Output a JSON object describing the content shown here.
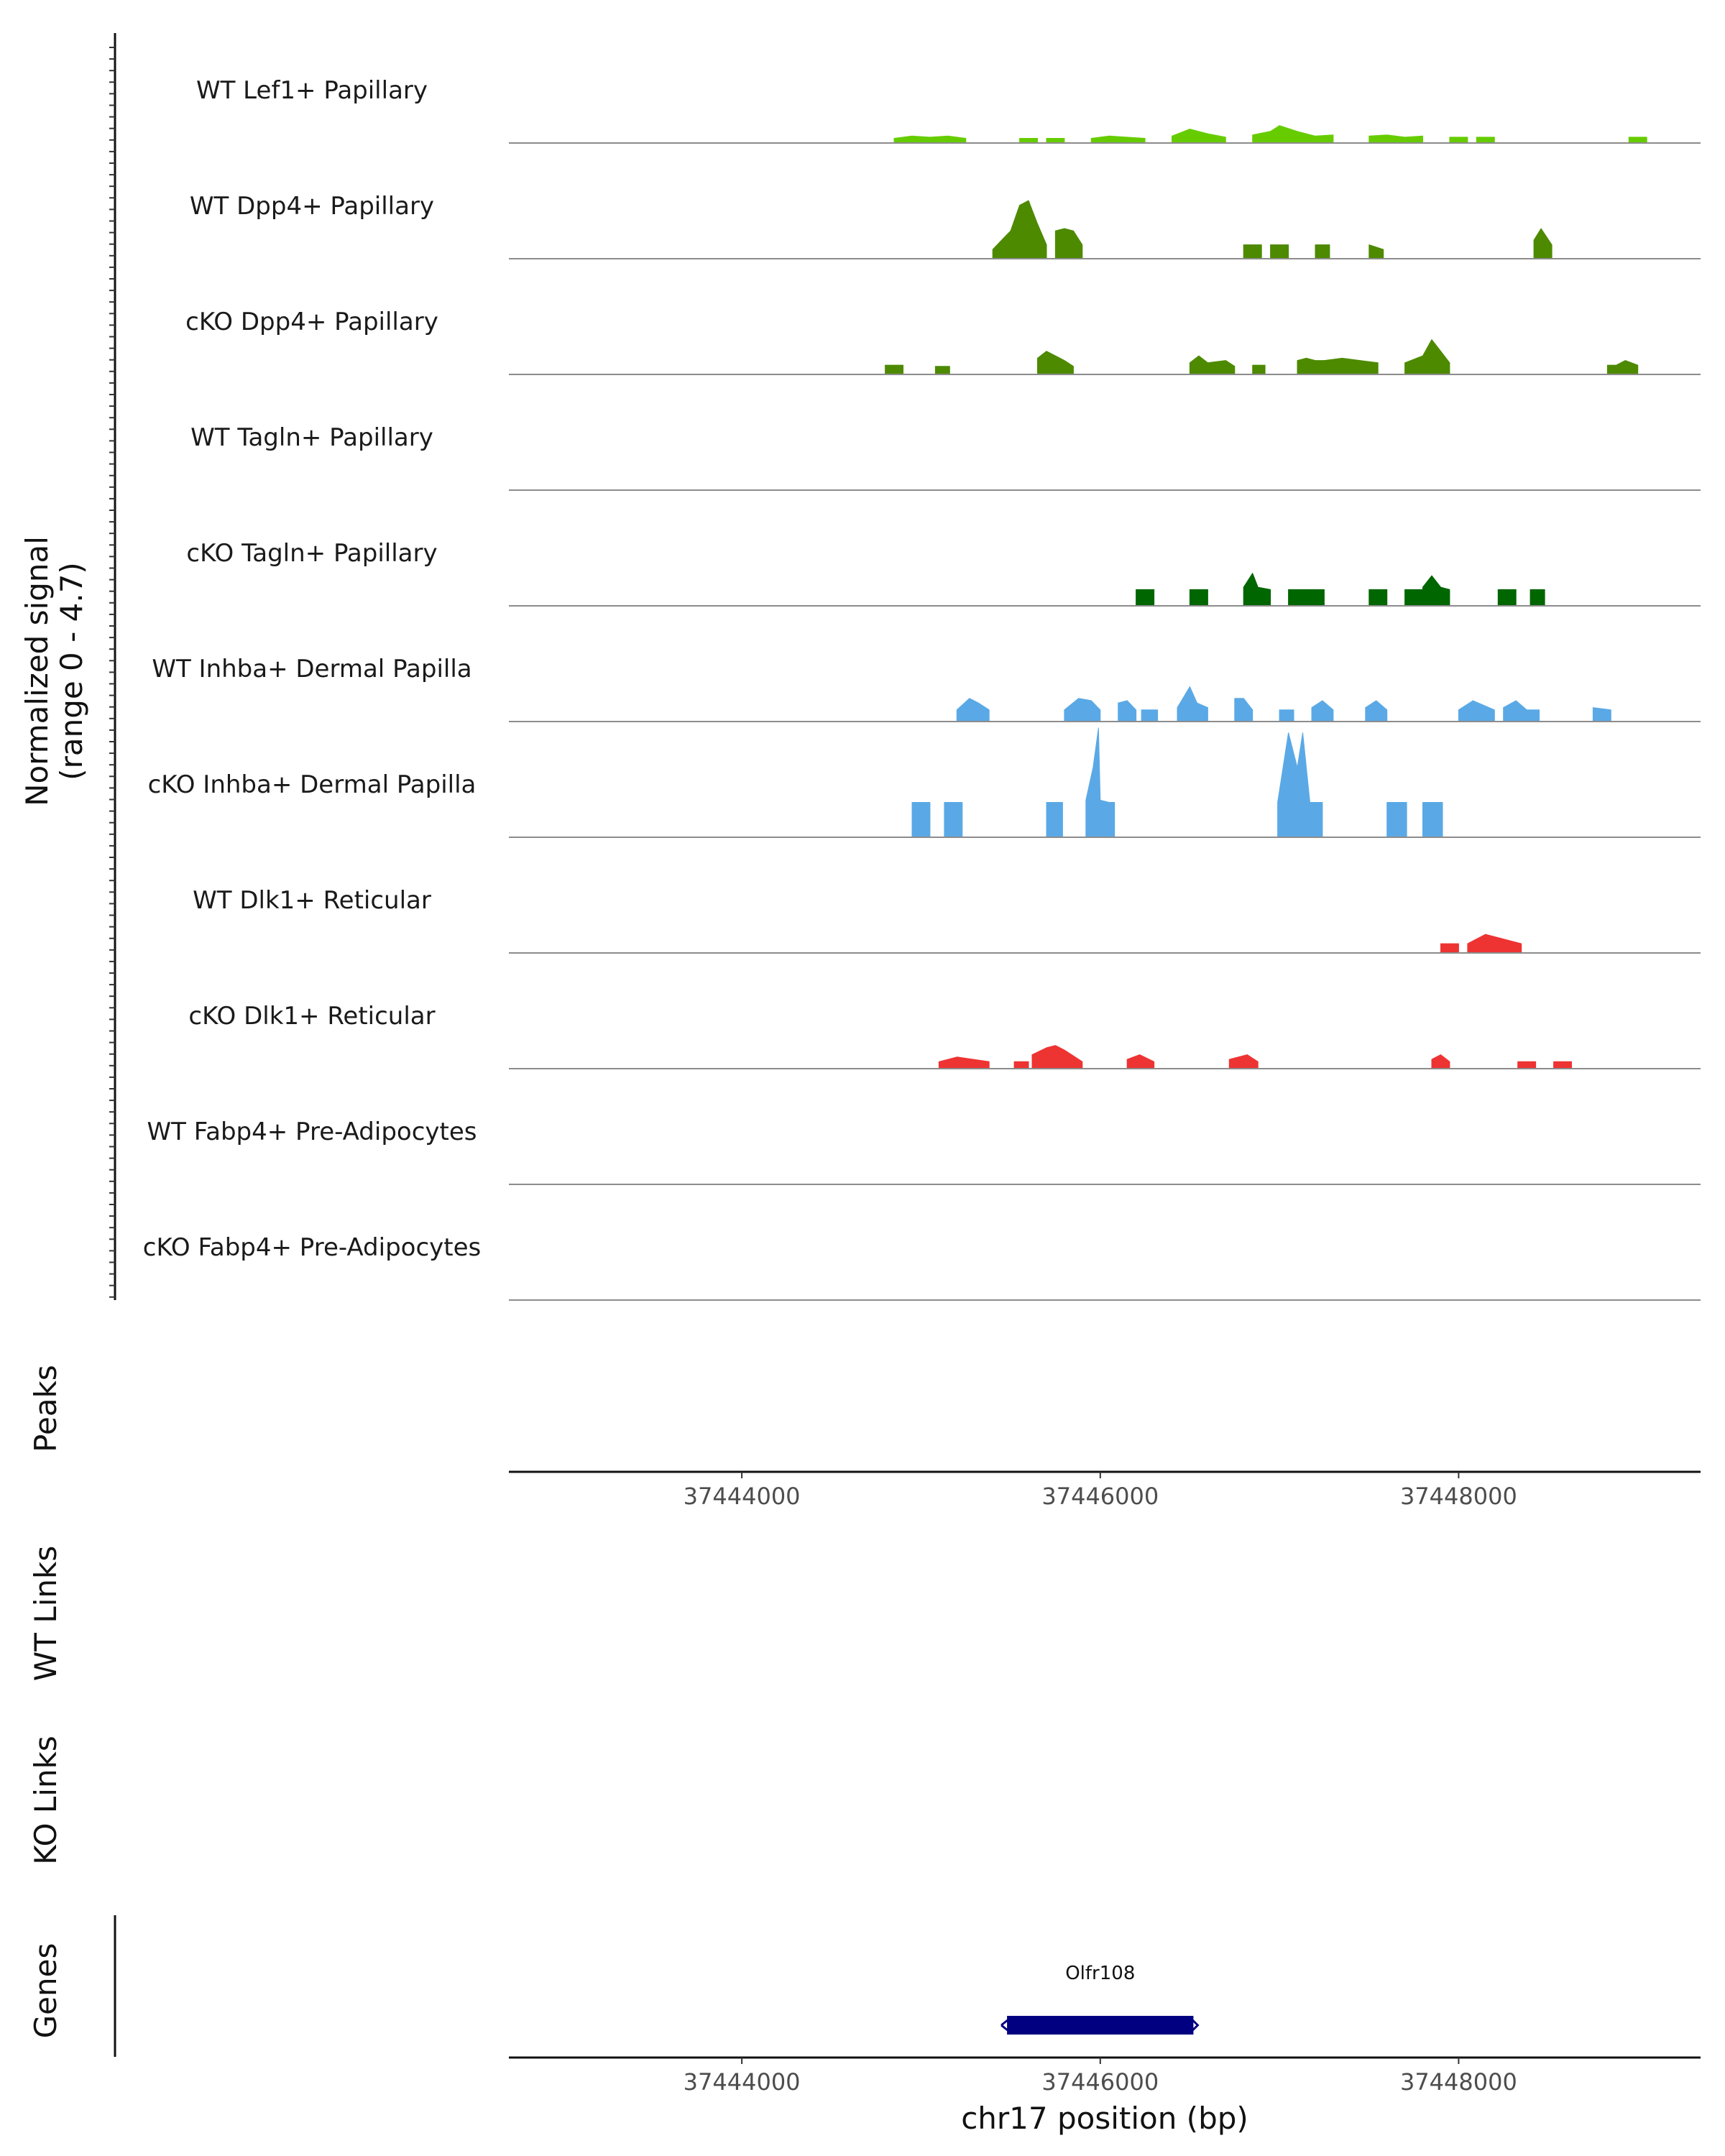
{
  "chart_data": {
    "type": "area",
    "chromosome": "chr17",
    "xlim": [
      37442700,
      37449350
    ],
    "signal_ylim": [
      0,
      4.7
    ],
    "ylabel_signal": "Normalized signal",
    "ylabel_signal_range": "(range 0 - 4.7)",
    "ylabel_peaks": "Peaks",
    "ylabel_wt_links": "WT Links",
    "ylabel_ko_links": "KO Links",
    "ylabel_genes": "Genes",
    "xlabel": "chr17 position (bp)",
    "xticks": [
      37444000,
      37446000,
      37448000
    ],
    "xtick_labels": [
      "37444000",
      "37446000",
      "37448000"
    ],
    "tracks": [
      {
        "name": "WT Lef1+ Papillary",
        "color": "#66cc00",
        "regions": [
          {
            "x": [
              37444850,
              37444950,
              37445050,
              37445150,
              37445250
            ],
            "y": [
              0.2,
              0.3,
              0.25,
              0.3,
              0.2
            ]
          },
          {
            "x": [
              37445550,
              37445650
            ],
            "y": [
              0.2,
              0.2
            ]
          },
          {
            "x": [
              37445700,
              37445800
            ],
            "y": [
              0.2,
              0.2
            ]
          },
          {
            "x": [
              37445950,
              37446050,
              37446150,
              37446250
            ],
            "y": [
              0.2,
              0.3,
              0.25,
              0.2
            ]
          },
          {
            "x": [
              37446400,
              37446500,
              37446600,
              37446700
            ],
            "y": [
              0.3,
              0.6,
              0.4,
              0.25
            ]
          },
          {
            "x": [
              37446850,
              37446950,
              37447000,
              37447100,
              37447200,
              37447300
            ],
            "y": [
              0.35,
              0.5,
              0.75,
              0.5,
              0.3,
              0.35
            ]
          },
          {
            "x": [
              37447500,
              37447600,
              37447700,
              37447800
            ],
            "y": [
              0.3,
              0.35,
              0.25,
              0.3
            ]
          },
          {
            "x": [
              37447950,
              37448050
            ],
            "y": [
              0.25,
              0.25
            ]
          },
          {
            "x": [
              37448100,
              37448200
            ],
            "y": [
              0.25,
              0.25
            ]
          },
          {
            "x": [
              37448950,
              37449050
            ],
            "y": [
              0.25,
              0.25
            ]
          }
        ]
      },
      {
        "name": "WT Dpp4+ Papillary",
        "color": "#4d8a00",
        "regions": [
          {
            "x": [
              37445400,
              37445450,
              37445500,
              37445550,
              37445600,
              37445650,
              37445700
            ],
            "y": [
              0.4,
              0.8,
              1.2,
              2.3,
              2.5,
              1.5,
              0.6
            ]
          },
          {
            "x": [
              37445750,
              37445800,
              37445850,
              37445900
            ],
            "y": [
              1.2,
              1.3,
              1.2,
              0.6
            ]
          },
          {
            "x": [
              37446800,
              37446900
            ],
            "y": [
              0.6,
              0.6
            ]
          },
          {
            "x": [
              37446950,
              37447050
            ],
            "y": [
              0.6,
              0.6
            ]
          },
          {
            "x": [
              37447200,
              37447280
            ],
            "y": [
              0.6,
              0.6
            ]
          },
          {
            "x": [
              37447500,
              37447580
            ],
            "y": [
              0.6,
              0.4
            ]
          },
          {
            "x": [
              37448420,
              37448460,
              37448520
            ],
            "y": [
              0.8,
              1.3,
              0.6
            ]
          }
        ]
      },
      {
        "name": "cKO Dpp4+ Papillary",
        "color": "#4d8a00",
        "regions": [
          {
            "x": [
              37444800,
              37444900
            ],
            "y": [
              0.4,
              0.4
            ]
          },
          {
            "x": [
              37445080,
              37445160
            ],
            "y": [
              0.35,
              0.35
            ]
          },
          {
            "x": [
              37445650,
              37445700,
              37445750,
              37445800,
              37445850
            ],
            "y": [
              0.7,
              1.0,
              0.8,
              0.6,
              0.35
            ]
          },
          {
            "x": [
              37446500,
              37446550,
              37446600,
              37446700,
              37446750
            ],
            "y": [
              0.5,
              0.8,
              0.5,
              0.6,
              0.35
            ]
          },
          {
            "x": [
              37446850,
              37446920
            ],
            "y": [
              0.4,
              0.4
            ]
          },
          {
            "x": [
              37447100,
              37447150,
              37447200,
              37447250
            ],
            "y": [
              0.6,
              0.7,
              0.6,
              0.6
            ]
          },
          {
            "x": [
              37447250,
              37447350,
              37447450,
              37447550
            ],
            "y": [
              0.6,
              0.7,
              0.6,
              0.5
            ]
          },
          {
            "x": [
              37447700,
              37447800,
              37447850,
              37447900,
              37447950
            ],
            "y": [
              0.5,
              0.8,
              1.5,
              1.0,
              0.5
            ]
          },
          {
            "x": [
              37448830,
              37448880,
              37448930,
              37449000
            ],
            "y": [
              0.4,
              0.4,
              0.6,
              0.4
            ]
          }
        ]
      },
      {
        "name": "WT Tagln+ Papillary",
        "color": "#006600",
        "regions": []
      },
      {
        "name": "cKO Tagln+ Papillary",
        "color": "#006600",
        "regions": [
          {
            "x": [
              37446200,
              37446300
            ],
            "y": [
              0.7,
              0.7
            ]
          },
          {
            "x": [
              37446500,
              37446600
            ],
            "y": [
              0.7,
              0.7
            ]
          },
          {
            "x": [
              37446800,
              37446850,
              37446880,
              37446950
            ],
            "y": [
              0.8,
              1.4,
              0.8,
              0.7
            ]
          },
          {
            "x": [
              37447050,
              37447150
            ],
            "y": [
              0.7,
              0.7
            ]
          },
          {
            "x": [
              37447150,
              37447250
            ],
            "y": [
              0.7,
              0.7
            ]
          },
          {
            "x": [
              37447500,
              37447600
            ],
            "y": [
              0.7,
              0.7
            ]
          },
          {
            "x": [
              37447700,
              37447800
            ],
            "y": [
              0.7,
              0.7
            ]
          },
          {
            "x": [
              37447800,
              37447850,
              37447900,
              37447950
            ],
            "y": [
              0.8,
              1.3,
              0.8,
              0.7
            ]
          },
          {
            "x": [
              37448220,
              37448320
            ],
            "y": [
              0.7,
              0.7
            ]
          },
          {
            "x": [
              37448400,
              37448480
            ],
            "y": [
              0.7,
              0.7
            ]
          }
        ]
      },
      {
        "name": "WT Inhba+ Dermal Papilla",
        "color": "#5aa9e6",
        "regions": [
          {
            "x": [
              37445200,
              37445270,
              37445320,
              37445380
            ],
            "y": [
              0.5,
              1.0,
              0.8,
              0.5
            ]
          },
          {
            "x": [
              37445800,
              37445880,
              37445950,
              37446000
            ],
            "y": [
              0.5,
              1.0,
              0.9,
              0.5
            ]
          },
          {
            "x": [
              37446100,
              37446150,
              37446200
            ],
            "y": [
              0.8,
              0.9,
              0.5
            ]
          },
          {
            "x": [
              37446230,
              37446320
            ],
            "y": [
              0.5,
              0.5
            ]
          },
          {
            "x": [
              37446430,
              37446500,
              37446540,
              37446600
            ],
            "y": [
              0.6,
              1.5,
              0.8,
              0.6
            ]
          },
          {
            "x": [
              37446750,
              37446800,
              37446850
            ],
            "y": [
              1.0,
              1.0,
              0.5
            ]
          },
          {
            "x": [
              37447000,
              37447080
            ],
            "y": [
              0.5,
              0.5
            ]
          },
          {
            "x": [
              37447180,
              37447240,
              37447300
            ],
            "y": [
              0.6,
              0.9,
              0.5
            ]
          },
          {
            "x": [
              37447480,
              37447540,
              37447600
            ],
            "y": [
              0.6,
              0.9,
              0.5
            ]
          },
          {
            "x": [
              37448000,
              37448080,
              37448200
            ],
            "y": [
              0.5,
              0.9,
              0.5
            ]
          },
          {
            "x": [
              37448250,
              37448320,
              37448380,
              37448450
            ],
            "y": [
              0.6,
              0.9,
              0.5,
              0.5
            ]
          },
          {
            "x": [
              37448750,
              37448850
            ],
            "y": [
              0.6,
              0.5
            ]
          }
        ]
      },
      {
        "name": "cKO Inhba+ Dermal Papilla",
        "color": "#5aa9e6",
        "regions": [
          {
            "x": [
              37444950,
              37445050
            ],
            "y": [
              1.5,
              1.5
            ]
          },
          {
            "x": [
              37445130,
              37445230
            ],
            "y": [
              1.5,
              1.5
            ]
          },
          {
            "x": [
              37445700,
              37445790
            ],
            "y": [
              1.5,
              1.5
            ]
          },
          {
            "x": [
              37445920,
              37445960,
              37445990,
              37446000,
              37446050,
              37446080
            ],
            "y": [
              1.6,
              3.0,
              4.7,
              1.6,
              1.5,
              1.5
            ]
          },
          {
            "x": [
              37446990,
              37447050,
              37447100,
              37447130,
              37447170,
              37447240
            ],
            "y": [
              1.5,
              4.5,
              3.0,
              4.5,
              1.5,
              1.5
            ]
          },
          {
            "x": [
              37447600,
              37447710
            ],
            "y": [
              1.5,
              1.5
            ]
          },
          {
            "x": [
              37447800,
              37447910
            ],
            "y": [
              1.5,
              1.5
            ]
          }
        ]
      },
      {
        "name": "WT Dlk1+ Reticular",
        "color": "#ee3333",
        "regions": [
          {
            "x": [
              37447900,
              37448000
            ],
            "y": [
              0.4,
              0.4
            ]
          },
          {
            "x": [
              37448050,
              37448150,
              37448350
            ],
            "y": [
              0.4,
              0.8,
              0.4
            ]
          }
        ]
      },
      {
        "name": "cKO Dlk1+ Reticular",
        "color": "#ee3333",
        "regions": [
          {
            "x": [
              37445100,
              37445200,
              37445380
            ],
            "y": [
              0.3,
              0.5,
              0.3
            ]
          },
          {
            "x": [
              37445520,
              37445600
            ],
            "y": [
              0.3,
              0.3
            ]
          },
          {
            "x": [
              37445620,
              37445700,
              37445750,
              37445800,
              37445900
            ],
            "y": [
              0.6,
              0.9,
              1.0,
              0.8,
              0.3
            ]
          },
          {
            "x": [
              37446150,
              37446220,
              37446300
            ],
            "y": [
              0.4,
              0.6,
              0.3
            ]
          },
          {
            "x": [
              37446720,
              37446820,
              37446880
            ],
            "y": [
              0.4,
              0.6,
              0.3
            ]
          },
          {
            "x": [
              37447850,
              37447900,
              37447950
            ],
            "y": [
              0.4,
              0.6,
              0.3
            ]
          },
          {
            "x": [
              37448330,
              37448430
            ],
            "y": [
              0.3,
              0.3
            ]
          },
          {
            "x": [
              37448530,
              37448630
            ],
            "y": [
              0.3,
              0.3
            ]
          }
        ]
      },
      {
        "name": "WT Fabp4+ Pre-Adipocytes",
        "color": "#9467bd",
        "regions": []
      },
      {
        "name": "cKO Fabp4+ Pre-Adipocytes",
        "color": "#9467bd",
        "regions": []
      }
    ],
    "genes": [
      {
        "name": "Olfr108",
        "start": 37445480,
        "end": 37446520,
        "strand": "-",
        "color": "#000080"
      }
    ]
  }
}
